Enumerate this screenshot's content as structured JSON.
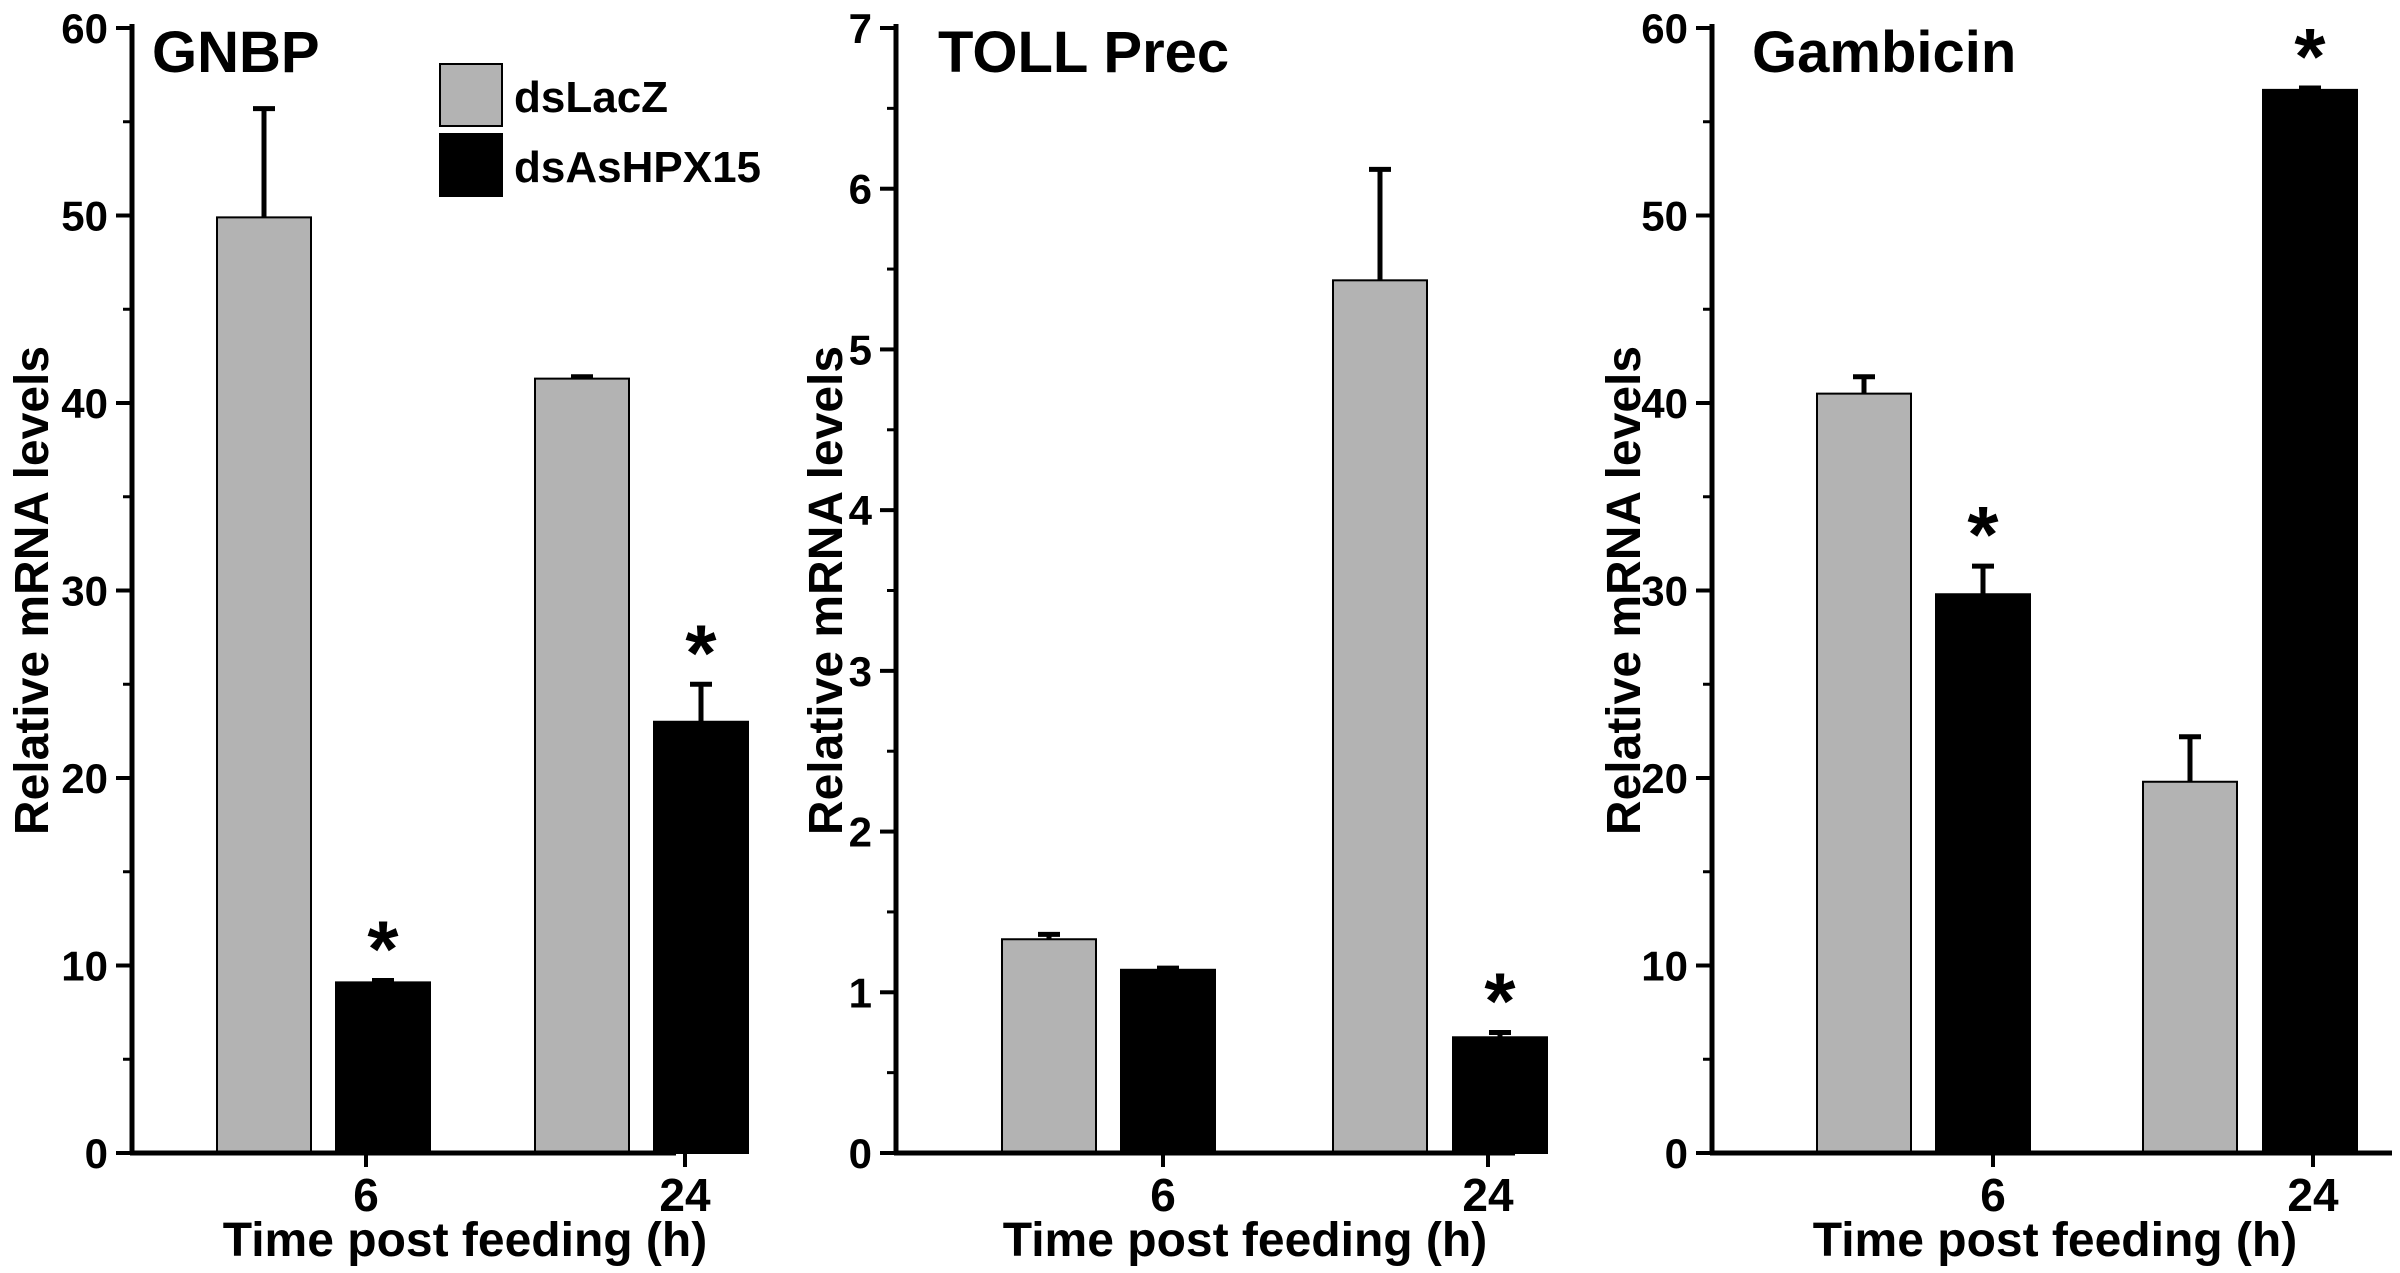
{
  "figure_description_legend": {
    "entries": [
      {
        "label": "dsLacZ",
        "color": "#b3b3b3"
      },
      {
        "label": "dsAsHPX15",
        "color": "#000000"
      }
    ]
  },
  "colors": {
    "dsLacZ": "#b3b3b3",
    "dsAsHPX15": "#000000",
    "axis": "#000000"
  },
  "chart_data": [
    {
      "type": "bar",
      "title": "GNBP",
      "xlabel": "Time post feeding (h)",
      "ylabel": "Relative mRNA levels",
      "categories": [
        "6",
        "24"
      ],
      "ylim": [
        0,
        60
      ],
      "yticks": [
        0,
        10,
        20,
        30,
        40,
        50,
        60
      ],
      "legend": "top-center",
      "series": [
        {
          "name": "dsLacZ",
          "values": [
            49.9,
            41.3
          ],
          "errors": [
            5.8,
            0.1
          ],
          "significant": [
            false,
            false
          ]
        },
        {
          "name": "dsAsHPX15",
          "values": [
            9.1,
            23.0
          ],
          "errors": [
            0.1,
            2.0
          ],
          "significant": [
            true,
            true
          ]
        }
      ],
      "significance_marker": "*"
    },
    {
      "type": "bar",
      "title": "TOLL Prec",
      "xlabel": "Time post feeding (h)",
      "ylabel": "Relative mRNA levels",
      "categories": [
        "6",
        "24"
      ],
      "ylim": [
        0,
        7
      ],
      "yticks": [
        0,
        1,
        2,
        3,
        4,
        5,
        6,
        7
      ],
      "series": [
        {
          "name": "dsLacZ",
          "values": [
            1.33,
            5.43
          ],
          "errors": [
            0.03,
            0.69
          ],
          "significant": [
            false,
            false
          ]
        },
        {
          "name": "dsAsHPX15",
          "values": [
            1.14,
            0.72
          ],
          "errors": [
            0.01,
            0.03
          ],
          "significant": [
            false,
            true
          ]
        }
      ],
      "significance_marker": "*"
    },
    {
      "type": "bar",
      "title": "Gambicin",
      "xlabel": "Time post feeding (h)",
      "ylabel": "Relative mRNA levels",
      "categories": [
        "6",
        "24"
      ],
      "ylim": [
        0,
        60
      ],
      "yticks": [
        0,
        10,
        20,
        30,
        40,
        50,
        60
      ],
      "series": [
        {
          "name": "dsLacZ",
          "values": [
            40.5,
            19.8
          ],
          "errors": [
            0.9,
            2.4
          ],
          "significant": [
            false,
            false
          ]
        },
        {
          "name": "dsAsHPX15",
          "values": [
            29.8,
            56.7
          ],
          "errors": [
            1.5,
            0.1
          ],
          "significant": [
            true,
            true
          ]
        }
      ],
      "significance_marker": "*"
    }
  ]
}
